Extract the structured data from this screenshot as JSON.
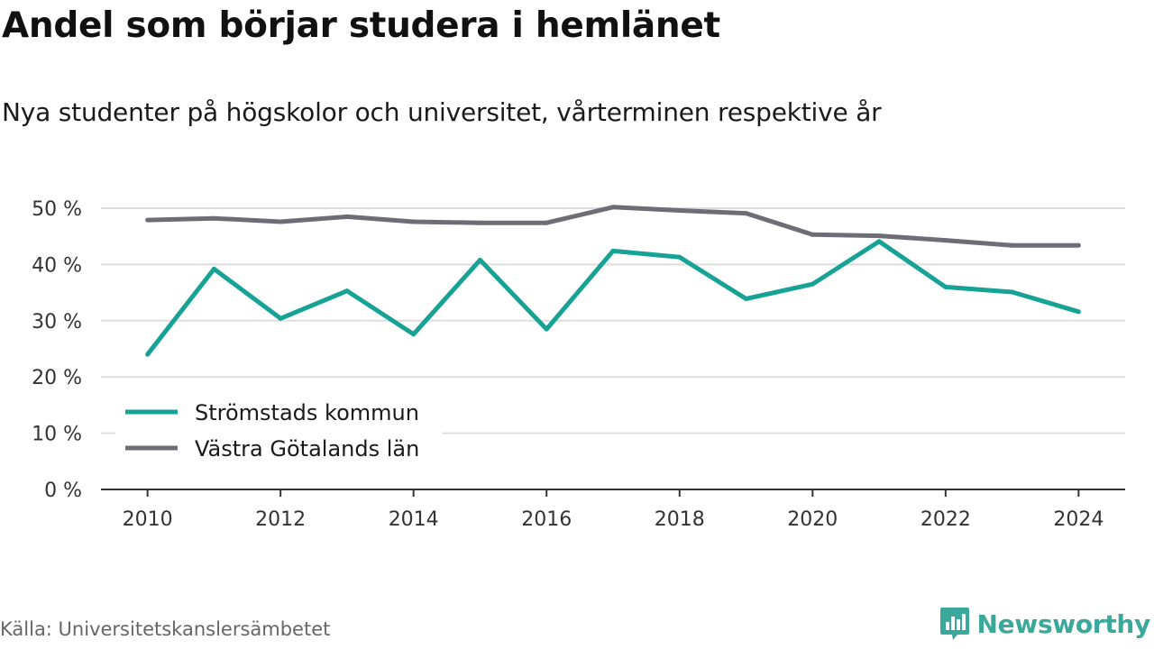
{
  "header": {
    "title": "Andel som börjar studera i hemlänet",
    "subtitle": "Nya studenter på högskolor och universitet, vårterminen respektive år"
  },
  "footer": {
    "source": "Källa: Universitetskanslersämbetet",
    "brand": "Newsworthy",
    "brand_icon": "bar-chart-speech-bubble-icon"
  },
  "colors": {
    "series_1": "#16a295",
    "series_2": "#6e6d75",
    "grid": "#dddddd",
    "axis": "#333333",
    "brand": "#3aa89b"
  },
  "chart_data": {
    "type": "line",
    "title": "Andel som börjar studera i hemlänet",
    "subtitle": "Nya studenter på högskolor och universitet, vårterminen respektive år",
    "xlabel": "",
    "ylabel": "",
    "x": [
      2010,
      2011,
      2012,
      2013,
      2014,
      2015,
      2016,
      2017,
      2018,
      2019,
      2020,
      2021,
      2022,
      2023,
      2024
    ],
    "x_ticks": [
      "2010",
      "2012",
      "2014",
      "2016",
      "2018",
      "2020",
      "2022",
      "2024"
    ],
    "x_tick_values": [
      2010,
      2012,
      2014,
      2016,
      2018,
      2020,
      2022,
      2024
    ],
    "xlim": [
      2009.3,
      2024.7
    ],
    "y_ticks": [
      "0 %",
      "10 %",
      "20 %",
      "30 %",
      "40 %",
      "50 %"
    ],
    "y_tick_values": [
      0,
      10,
      20,
      30,
      40,
      50
    ],
    "ylim": [
      0,
      50
    ],
    "grid": true,
    "legend_position": "bottom-left",
    "series": [
      {
        "name": "Strömstads kommun",
        "color": "#16a295",
        "values": [
          24.0,
          39.2,
          30.4,
          35.3,
          27.6,
          40.8,
          28.5,
          42.4,
          41.3,
          33.9,
          36.5,
          44.1,
          36.0,
          35.1,
          31.6
        ]
      },
      {
        "name": "Västra Götalands län",
        "color": "#6e6d75",
        "values": [
          47.9,
          48.2,
          47.6,
          48.5,
          47.6,
          47.4,
          47.4,
          50.2,
          49.6,
          49.1,
          45.3,
          45.1,
          44.3,
          43.4,
          43.4
        ]
      }
    ]
  }
}
